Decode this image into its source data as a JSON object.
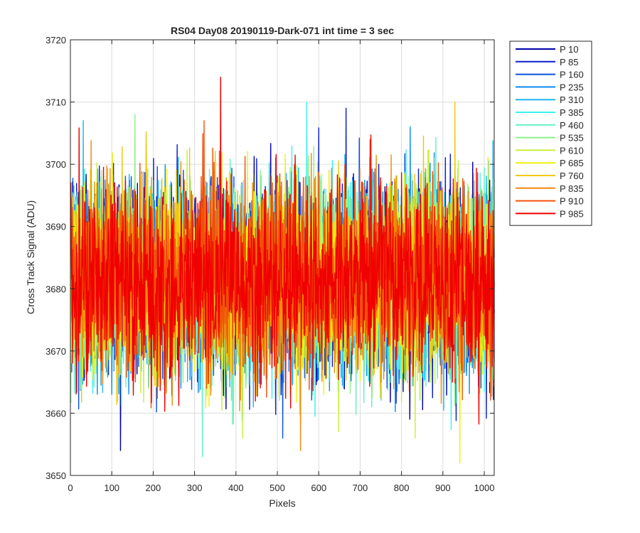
{
  "chart_data": {
    "type": "line",
    "title": "RS04 Day08 20190119-Dark-071 int time = 3 sec",
    "xlabel": "Pixels",
    "ylabel": "Cross Track Signal (ADU)",
    "xlim": [
      0,
      1024
    ],
    "ylim": [
      3650,
      3720
    ],
    "xticks": [
      0,
      100,
      200,
      300,
      400,
      500,
      600,
      700,
      800,
      900,
      1000
    ],
    "yticks": [
      3650,
      3660,
      3670,
      3680,
      3690,
      3700,
      3710,
      3720
    ],
    "grid": true,
    "legend_position": "outside-top-right",
    "noise": {
      "mean": 3681.5,
      "sigma": 7.5,
      "points_per_series": 1024
    },
    "series": [
      {
        "name": "P 10",
        "color": "#0000AA",
        "peak": {
          "x": 120,
          "y": 3654
        }
      },
      {
        "name": "P 85",
        "color": "#0A1ECC",
        "peak": {
          "x": 665,
          "y": 3709
        }
      },
      {
        "name": "P 160",
        "color": "#0A50DC",
        "peak": {
          "x": 512,
          "y": 3656
        }
      },
      {
        "name": "P 235",
        "color": "#0A8CF0",
        "peak": {
          "x": 820,
          "y": 3706
        }
      },
      {
        "name": "P 310",
        "color": "#1EB4F0",
        "peak": {
          "x": 30,
          "y": 3707
        }
      },
      {
        "name": "P 385",
        "color": "#3CF0F0",
        "peak": {
          "x": 570,
          "y": 3710
        }
      },
      {
        "name": "P 460",
        "color": "#64F0C8",
        "peak": {
          "x": 318,
          "y": 3653
        }
      },
      {
        "name": "P 535",
        "color": "#8CF08C",
        "peak": {
          "x": 155,
          "y": 3708
        }
      },
      {
        "name": "P 610",
        "color": "#C8F03C",
        "peak": {
          "x": 415,
          "y": 3656
        }
      },
      {
        "name": "P 685",
        "color": "#F0F00A",
        "peak": {
          "x": 940,
          "y": 3652
        }
      },
      {
        "name": "P 760",
        "color": "#F0C80A",
        "peak": {
          "x": 928,
          "y": 3710
        }
      },
      {
        "name": "P 835",
        "color": "#F08C0A",
        "peak": {
          "x": 555,
          "y": 3654
        }
      },
      {
        "name": "P 910",
        "color": "#F0500A",
        "peak": {
          "x": 322,
          "y": 3707
        }
      },
      {
        "name": "P 985",
        "color": "#F00000",
        "peak": {
          "x": 362,
          "y": 3714
        }
      }
    ]
  }
}
